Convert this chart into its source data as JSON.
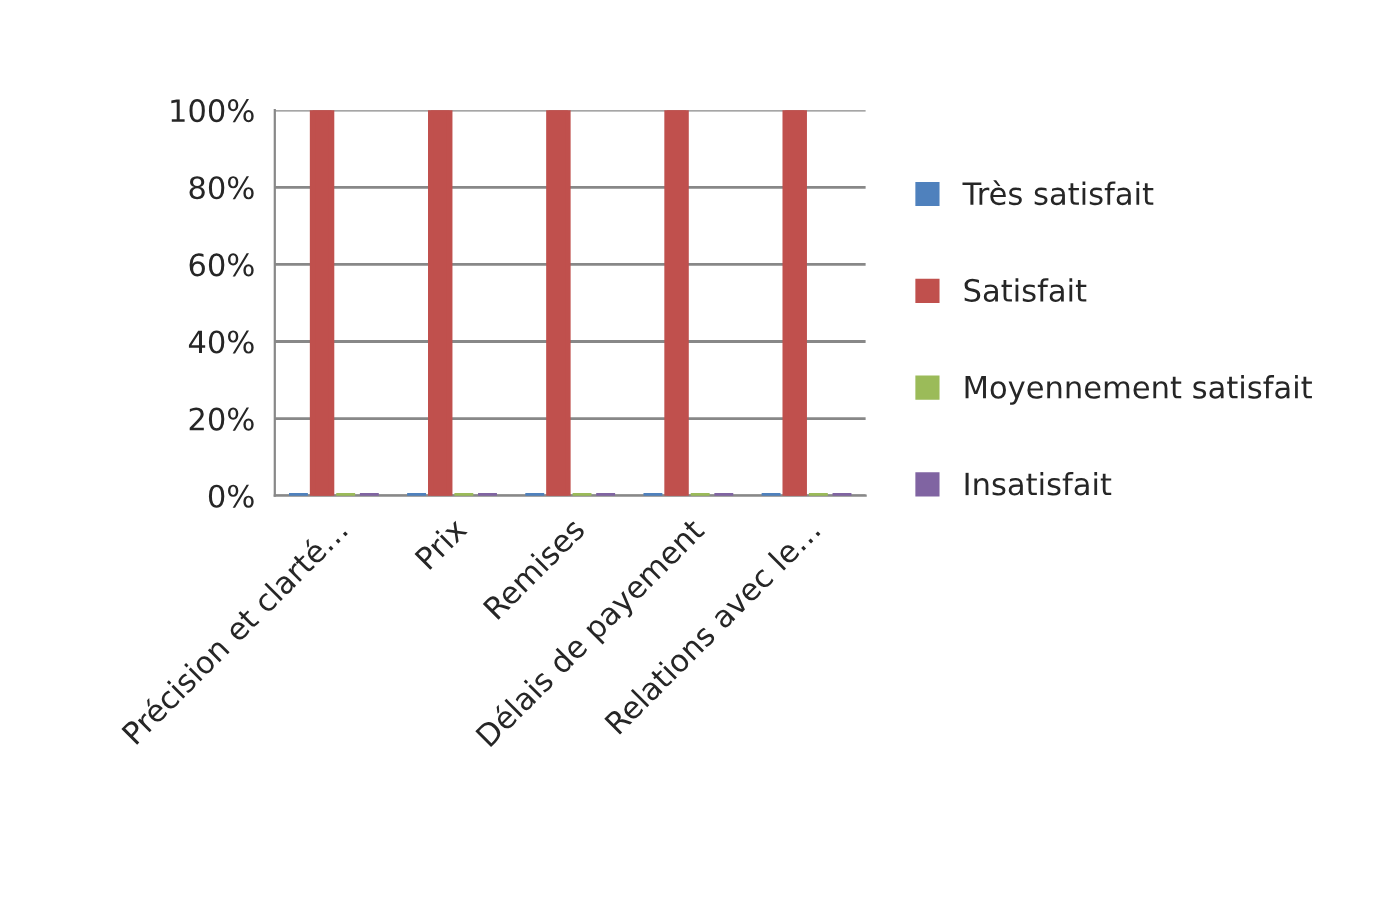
{
  "chart_data": {
    "type": "bar",
    "categories": [
      "Précision et clarté…",
      "Prix",
      "Remises",
      "Délais de payement",
      "Relations avec le…"
    ],
    "series": [
      {
        "name": "Très satisfait",
        "color": "#4f81bd",
        "values": [
          0,
          0,
          0,
          0,
          0
        ]
      },
      {
        "name": "Satisfait",
        "color": "#c0504d",
        "values": [
          100,
          100,
          100,
          100,
          100
        ]
      },
      {
        "name": "Moyennement satisfait",
        "color": "#9bbb59",
        "values": [
          0,
          0,
          0,
          0,
          0
        ]
      },
      {
        "name": "Insatisfait",
        "color": "#8064a2",
        "values": [
          0,
          0,
          0,
          0,
          0
        ]
      }
    ],
    "ylim": [
      0,
      100
    ],
    "yticks": [
      {
        "value": 0,
        "label": "0%"
      },
      {
        "value": 20,
        "label": "20%"
      },
      {
        "value": 40,
        "label": "40%"
      },
      {
        "value": 60,
        "label": "60%"
      },
      {
        "value": 80,
        "label": "80%"
      },
      {
        "value": 100,
        "label": "100%"
      }
    ],
    "grid": "y",
    "legend": "right"
  }
}
